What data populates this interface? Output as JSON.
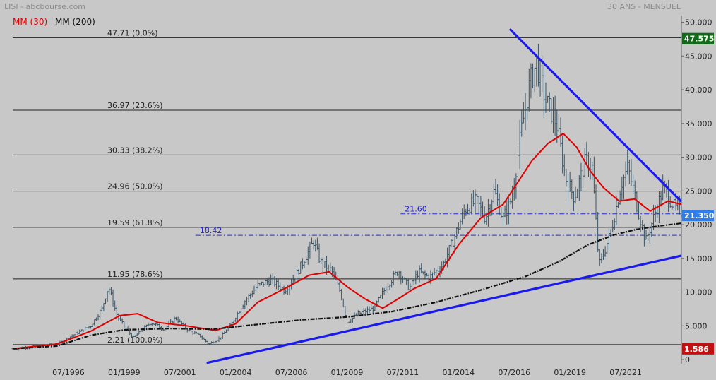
{
  "header": {
    "source": "LISI - abcbourse.com",
    "period": "30 ANS - MENSUEL"
  },
  "legend": [
    {
      "label": "MM (30)",
      "color": "#e00000"
    },
    {
      "label": "MM (200)",
      "color": "#111111"
    }
  ],
  "chart_data": {
    "type": "line",
    "grid": false,
    "x_ticks": [
      "07/1996",
      "01/1999",
      "07/2001",
      "01/2004",
      "07/2006",
      "01/2009",
      "07/2011",
      "01/2014",
      "07/2016",
      "01/2019",
      "07/2021"
    ],
    "y_ticks": [
      "0",
      "5.000",
      "10.000",
      "15.000",
      "20.000",
      "25.000",
      "30.000",
      "35.000",
      "40.000",
      "45.000",
      "50.000"
    ],
    "ylim": [
      0,
      51
    ],
    "xlim": [
      1994.0,
      2024.0
    ],
    "price_badges": [
      {
        "label": "47.575",
        "value": 47.575,
        "bg": "#0f6b15",
        "fg": "#ffffff"
      },
      {
        "label": "21.350",
        "value": 21.35,
        "bg": "#2f7dea",
        "fg": "#ffffff"
      },
      {
        "label": "1.586",
        "value": 1.586,
        "bg": "#c01010",
        "fg": "#ffffff"
      }
    ],
    "fibonacci": [
      {
        "label": "47.71  (0.0%)",
        "value": 47.71
      },
      {
        "label": "36.97  (23.6%)",
        "value": 36.97
      },
      {
        "label": "30.33  (38.2%)",
        "value": 30.33
      },
      {
        "label": "24.96  (50.0%)",
        "value": 24.96
      },
      {
        "label": "19.59  (61.8%)",
        "value": 19.59
      },
      {
        "label": "11.95  (78.6%)",
        "value": 11.95
      },
      {
        "label": "2.21  (100.0%)",
        "value": 2.21
      }
    ],
    "levels": [
      {
        "label": "21.60",
        "value": 21.6,
        "from": 2011.4
      },
      {
        "label": "18.42",
        "value": 18.42,
        "from": 2002.2
      }
    ],
    "trendlines": [
      {
        "name": "resistance",
        "color": "#1a1aee",
        "from": [
          2016.3,
          49.0
        ],
        "to": [
          2024.0,
          23.4
        ]
      },
      {
        "name": "support",
        "color": "#1a1aee",
        "from": [
          2002.7,
          -0.5
        ],
        "to": [
          2024.0,
          15.4
        ]
      }
    ],
    "price_series": [
      [
        1994.0,
        1.6
      ],
      [
        1995.0,
        1.9
      ],
      [
        1996.0,
        2.3
      ],
      [
        1996.7,
        3.6
      ],
      [
        1997.5,
        5.0
      ],
      [
        1998.0,
        7.5
      ],
      [
        1998.3,
        10.8
      ],
      [
        1998.7,
        6.3
      ],
      [
        1999.0,
        5.0
      ],
      [
        1999.4,
        3.2
      ],
      [
        1999.8,
        4.4
      ],
      [
        2000.2,
        5.5
      ],
      [
        2000.8,
        4.5
      ],
      [
        2001.3,
        6.2
      ],
      [
        2001.8,
        4.5
      ],
      [
        2002.4,
        3.5
      ],
      [
        2002.8,
        2.3
      ],
      [
        2003.3,
        3.2
      ],
      [
        2003.8,
        5.2
      ],
      [
        2004.4,
        8.6
      ],
      [
        2005.0,
        11.0
      ],
      [
        2005.6,
        11.8
      ],
      [
        2006.2,
        10.2
      ],
      [
        2006.7,
        12.5
      ],
      [
        2007.2,
        15.6
      ],
      [
        2007.5,
        17.5
      ],
      [
        2007.8,
        14.5
      ],
      [
        2008.3,
        13.2
      ],
      [
        2008.7,
        10.0
      ],
      [
        2009.0,
        5.5
      ],
      [
        2009.5,
        6.8
      ],
      [
        2010.2,
        7.6
      ],
      [
        2010.8,
        11.0
      ],
      [
        2011.3,
        13.2
      ],
      [
        2011.8,
        10.5
      ],
      [
        2012.2,
        13.0
      ],
      [
        2012.7,
        12.2
      ],
      [
        2013.3,
        14.0
      ],
      [
        2013.8,
        18.0
      ],
      [
        2014.3,
        22.3
      ],
      [
        2014.8,
        23.5
      ],
      [
        2015.2,
        21.0
      ],
      [
        2015.6,
        25.0
      ],
      [
        2016.0,
        20.8
      ],
      [
        2016.4,
        24.0
      ],
      [
        2016.8,
        33.5
      ],
      [
        2017.2,
        41.0
      ],
      [
        2017.5,
        44.0
      ],
      [
        2017.9,
        38.5
      ],
      [
        2018.4,
        35.0
      ],
      [
        2018.8,
        27.0
      ],
      [
        2019.2,
        24.0
      ],
      [
        2019.7,
        29.5
      ],
      [
        2020.0,
        28.5
      ],
      [
        2020.3,
        14.0
      ],
      [
        2020.6,
        16.5
      ],
      [
        2020.9,
        19.8
      ],
      [
        2021.3,
        26.0
      ],
      [
        2021.6,
        28.5
      ],
      [
        2022.0,
        23.0
      ],
      [
        2022.4,
        17.5
      ],
      [
        2022.8,
        21.5
      ],
      [
        2023.2,
        25.5
      ],
      [
        2023.7,
        22.5
      ],
      [
        2024.0,
        22.0
      ]
    ],
    "series": [
      {
        "name": "MM (30)",
        "color": "#e00000",
        "points": [
          [
            1994.0,
            1.6
          ],
          [
            1996.0,
            2.3
          ],
          [
            1997.5,
            4.2
          ],
          [
            1998.8,
            6.5
          ],
          [
            1999.6,
            6.8
          ],
          [
            2000.5,
            5.5
          ],
          [
            2001.8,
            5.0
          ],
          [
            2003.1,
            4.3
          ],
          [
            2004.0,
            5.3
          ],
          [
            2005.0,
            8.5
          ],
          [
            2006.2,
            10.5
          ],
          [
            2007.3,
            12.5
          ],
          [
            2008.2,
            13.0
          ],
          [
            2009.0,
            10.8
          ],
          [
            2009.8,
            9.0
          ],
          [
            2010.6,
            7.6
          ],
          [
            2011.2,
            8.8
          ],
          [
            2012.0,
            10.5
          ],
          [
            2013.0,
            12.0
          ],
          [
            2014.0,
            17.0
          ],
          [
            2015.0,
            21.0
          ],
          [
            2016.0,
            23.0
          ],
          [
            2016.7,
            26.5
          ],
          [
            2017.3,
            29.5
          ],
          [
            2018.0,
            32.0
          ],
          [
            2018.7,
            33.5
          ],
          [
            2019.3,
            31.5
          ],
          [
            2019.9,
            28.0
          ],
          [
            2020.5,
            25.5
          ],
          [
            2021.2,
            23.5
          ],
          [
            2021.9,
            23.8
          ],
          [
            2022.6,
            22.0
          ],
          [
            2023.4,
            23.5
          ],
          [
            2024.0,
            23.0
          ]
        ]
      },
      {
        "name": "MM (200)",
        "color": "#111111",
        "points": [
          [
            1994.0,
            1.6
          ],
          [
            1996.0,
            2.0
          ],
          [
            1997.5,
            3.6
          ],
          [
            1999.0,
            4.4
          ],
          [
            2001.0,
            4.6
          ],
          [
            2003.0,
            4.5
          ],
          [
            2005.0,
            5.2
          ],
          [
            2007.0,
            5.9
          ],
          [
            2009.0,
            6.3
          ],
          [
            2011.0,
            7.1
          ],
          [
            2013.0,
            8.5
          ],
          [
            2015.0,
            10.3
          ],
          [
            2017.0,
            12.3
          ],
          [
            2018.5,
            14.5
          ],
          [
            2019.8,
            17.0
          ],
          [
            2021.0,
            18.5
          ],
          [
            2022.0,
            19.3
          ],
          [
            2023.0,
            19.8
          ],
          [
            2024.0,
            20.2
          ]
        ]
      }
    ]
  }
}
